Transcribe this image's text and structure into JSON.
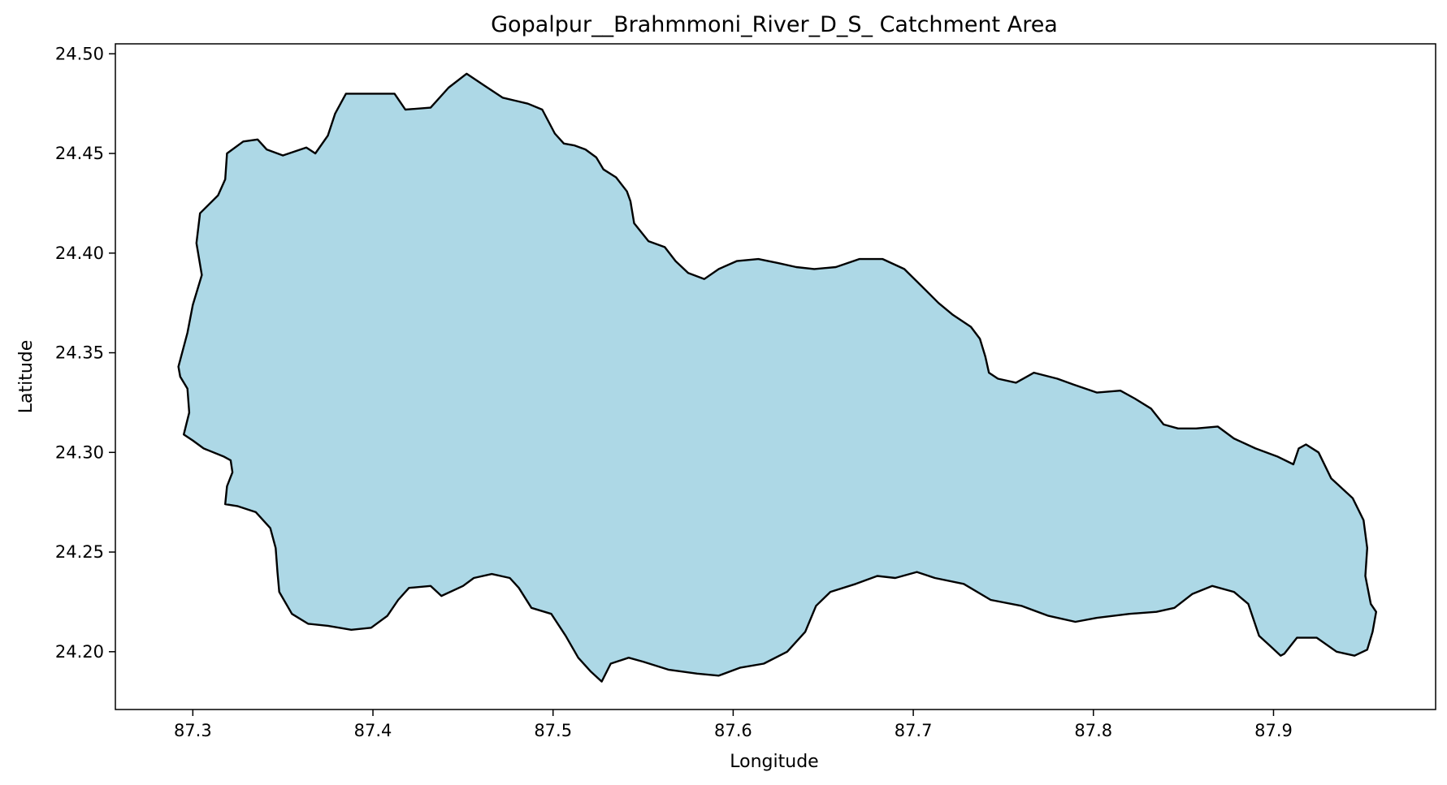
{
  "title": "Gopalpur__Brahmmoni_River_D_S_ Catchment Area",
  "chart_data": {
    "type": "map",
    "title": "Gopalpur__Brahmmoni_River_D_S_ Catchment Area",
    "xlabel": "Longitude",
    "ylabel": "Latitude",
    "xlim": [
      87.257,
      87.99
    ],
    "ylim": [
      24.171,
      24.505
    ],
    "x_ticks": [
      87.3,
      87.4,
      87.5,
      87.6,
      87.7,
      87.8,
      87.9
    ],
    "x_tick_labels": [
      "87.3",
      "87.4",
      "87.5",
      "87.6",
      "87.7",
      "87.8",
      "87.9"
    ],
    "y_ticks": [
      24.2,
      24.25,
      24.3,
      24.35,
      24.4,
      24.45,
      24.5
    ],
    "y_tick_labels": [
      "24.20",
      "24.25",
      "24.30",
      "24.35",
      "24.40",
      "24.45",
      "24.50"
    ],
    "grid": false,
    "fill_color": "#add8e6",
    "edge_color": "#000000",
    "boundary": [
      [
        87.292,
        24.343
      ],
      [
        87.297,
        24.36
      ],
      [
        87.3,
        24.374
      ],
      [
        87.305,
        24.389
      ],
      [
        87.302,
        24.405
      ],
      [
        87.304,
        24.42
      ],
      [
        87.314,
        24.429
      ],
      [
        87.318,
        24.437
      ],
      [
        87.319,
        24.45
      ],
      [
        87.328,
        24.456
      ],
      [
        87.336,
        24.457
      ],
      [
        87.341,
        24.452
      ],
      [
        87.35,
        24.449
      ],
      [
        87.363,
        24.453
      ],
      [
        87.368,
        24.45
      ],
      [
        87.375,
        24.459
      ],
      [
        87.379,
        24.47
      ],
      [
        87.385,
        24.48
      ],
      [
        87.398,
        24.48
      ],
      [
        87.412,
        24.48
      ],
      [
        87.418,
        24.472
      ],
      [
        87.432,
        24.473
      ],
      [
        87.442,
        24.483
      ],
      [
        87.452,
        24.49
      ],
      [
        87.462,
        24.484
      ],
      [
        87.472,
        24.478
      ],
      [
        87.486,
        24.475
      ],
      [
        87.494,
        24.472
      ],
      [
        87.501,
        24.46
      ],
      [
        87.506,
        24.455
      ],
      [
        87.512,
        24.454
      ],
      [
        87.518,
        24.452
      ],
      [
        87.524,
        24.448
      ],
      [
        87.528,
        24.442
      ],
      [
        87.535,
        24.438
      ],
      [
        87.541,
        24.431
      ],
      [
        87.543,
        24.426
      ],
      [
        87.545,
        24.415
      ],
      [
        87.553,
        24.406
      ],
      [
        87.562,
        24.403
      ],
      [
        87.568,
        24.396
      ],
      [
        87.575,
        24.39
      ],
      [
        87.584,
        24.387
      ],
      [
        87.592,
        24.392
      ],
      [
        87.602,
        24.396
      ],
      [
        87.614,
        24.397
      ],
      [
        87.625,
        24.395
      ],
      [
        87.635,
        24.393
      ],
      [
        87.645,
        24.392
      ],
      [
        87.657,
        24.393
      ],
      [
        87.67,
        24.397
      ],
      [
        87.683,
        24.397
      ],
      [
        87.695,
        24.392
      ],
      [
        87.704,
        24.384
      ],
      [
        87.714,
        24.375
      ],
      [
        87.722,
        24.369
      ],
      [
        87.732,
        24.363
      ],
      [
        87.737,
        24.357
      ],
      [
        87.74,
        24.348
      ],
      [
        87.742,
        24.34
      ],
      [
        87.747,
        24.337
      ],
      [
        87.757,
        24.335
      ],
      [
        87.767,
        24.34
      ],
      [
        87.78,
        24.337
      ],
      [
        87.789,
        24.334
      ],
      [
        87.802,
        24.33
      ],
      [
        87.815,
        24.331
      ],
      [
        87.823,
        24.327
      ],
      [
        87.832,
        24.322
      ],
      [
        87.839,
        24.314
      ],
      [
        87.847,
        24.312
      ],
      [
        87.857,
        24.312
      ],
      [
        87.869,
        24.313
      ],
      [
        87.878,
        24.307
      ],
      [
        87.89,
        24.302
      ],
      [
        87.902,
        24.298
      ],
      [
        87.911,
        24.294
      ],
      [
        87.914,
        24.302
      ],
      [
        87.918,
        24.304
      ],
      [
        87.925,
        24.3
      ],
      [
        87.932,
        24.287
      ],
      [
        87.944,
        24.277
      ],
      [
        87.95,
        24.266
      ],
      [
        87.952,
        24.252
      ],
      [
        87.951,
        24.238
      ],
      [
        87.954,
        24.224
      ],
      [
        87.957,
        24.22
      ],
      [
        87.955,
        24.21
      ],
      [
        87.952,
        24.201
      ],
      [
        87.945,
        24.198
      ],
      [
        87.935,
        24.2
      ],
      [
        87.924,
        24.207
      ],
      [
        87.913,
        24.207
      ],
      [
        87.906,
        24.199
      ],
      [
        87.904,
        24.198
      ],
      [
        87.898,
        24.203
      ],
      [
        87.892,
        24.208
      ],
      [
        87.886,
        24.224
      ],
      [
        87.878,
        24.23
      ],
      [
        87.866,
        24.233
      ],
      [
        87.855,
        24.229
      ],
      [
        87.845,
        24.222
      ],
      [
        87.835,
        24.22
      ],
      [
        87.82,
        24.219
      ],
      [
        87.802,
        24.217
      ],
      [
        87.79,
        24.215
      ],
      [
        87.775,
        24.218
      ],
      [
        87.76,
        24.223
      ],
      [
        87.743,
        24.226
      ],
      [
        87.728,
        24.234
      ],
      [
        87.712,
        24.237
      ],
      [
        87.702,
        24.24
      ],
      [
        87.69,
        24.237
      ],
      [
        87.68,
        24.238
      ],
      [
        87.668,
        24.234
      ],
      [
        87.654,
        24.23
      ],
      [
        87.646,
        24.223
      ],
      [
        87.64,
        24.21
      ],
      [
        87.63,
        24.2
      ],
      [
        87.617,
        24.194
      ],
      [
        87.604,
        24.192
      ],
      [
        87.592,
        24.188
      ],
      [
        87.58,
        24.189
      ],
      [
        87.564,
        24.191
      ],
      [
        87.55,
        24.195
      ],
      [
        87.542,
        24.197
      ],
      [
        87.532,
        24.194
      ],
      [
        87.527,
        24.185
      ],
      [
        87.521,
        24.19
      ],
      [
        87.514,
        24.197
      ],
      [
        87.507,
        24.208
      ],
      [
        87.499,
        24.219
      ],
      [
        87.488,
        24.222
      ],
      [
        87.481,
        24.232
      ],
      [
        87.476,
        24.237
      ],
      [
        87.466,
        24.239
      ],
      [
        87.456,
        24.237
      ],
      [
        87.45,
        24.233
      ],
      [
        87.438,
        24.228
      ],
      [
        87.432,
        24.233
      ],
      [
        87.42,
        24.232
      ],
      [
        87.414,
        24.226
      ],
      [
        87.408,
        24.218
      ],
      [
        87.399,
        24.212
      ],
      [
        87.388,
        24.211
      ],
      [
        87.375,
        24.213
      ],
      [
        87.364,
        24.214
      ],
      [
        87.355,
        24.219
      ],
      [
        87.348,
        24.23
      ],
      [
        87.347,
        24.24
      ],
      [
        87.346,
        24.252
      ],
      [
        87.343,
        24.262
      ],
      [
        87.335,
        24.27
      ],
      [
        87.325,
        24.273
      ],
      [
        87.318,
        24.274
      ],
      [
        87.319,
        24.283
      ],
      [
        87.322,
        24.29
      ],
      [
        87.321,
        24.296
      ],
      [
        87.317,
        24.298
      ],
      [
        87.306,
        24.302
      ],
      [
        87.3,
        24.306
      ],
      [
        87.295,
        24.309
      ],
      [
        87.298,
        24.32
      ],
      [
        87.297,
        24.332
      ],
      [
        87.293,
        24.338
      ]
    ]
  }
}
